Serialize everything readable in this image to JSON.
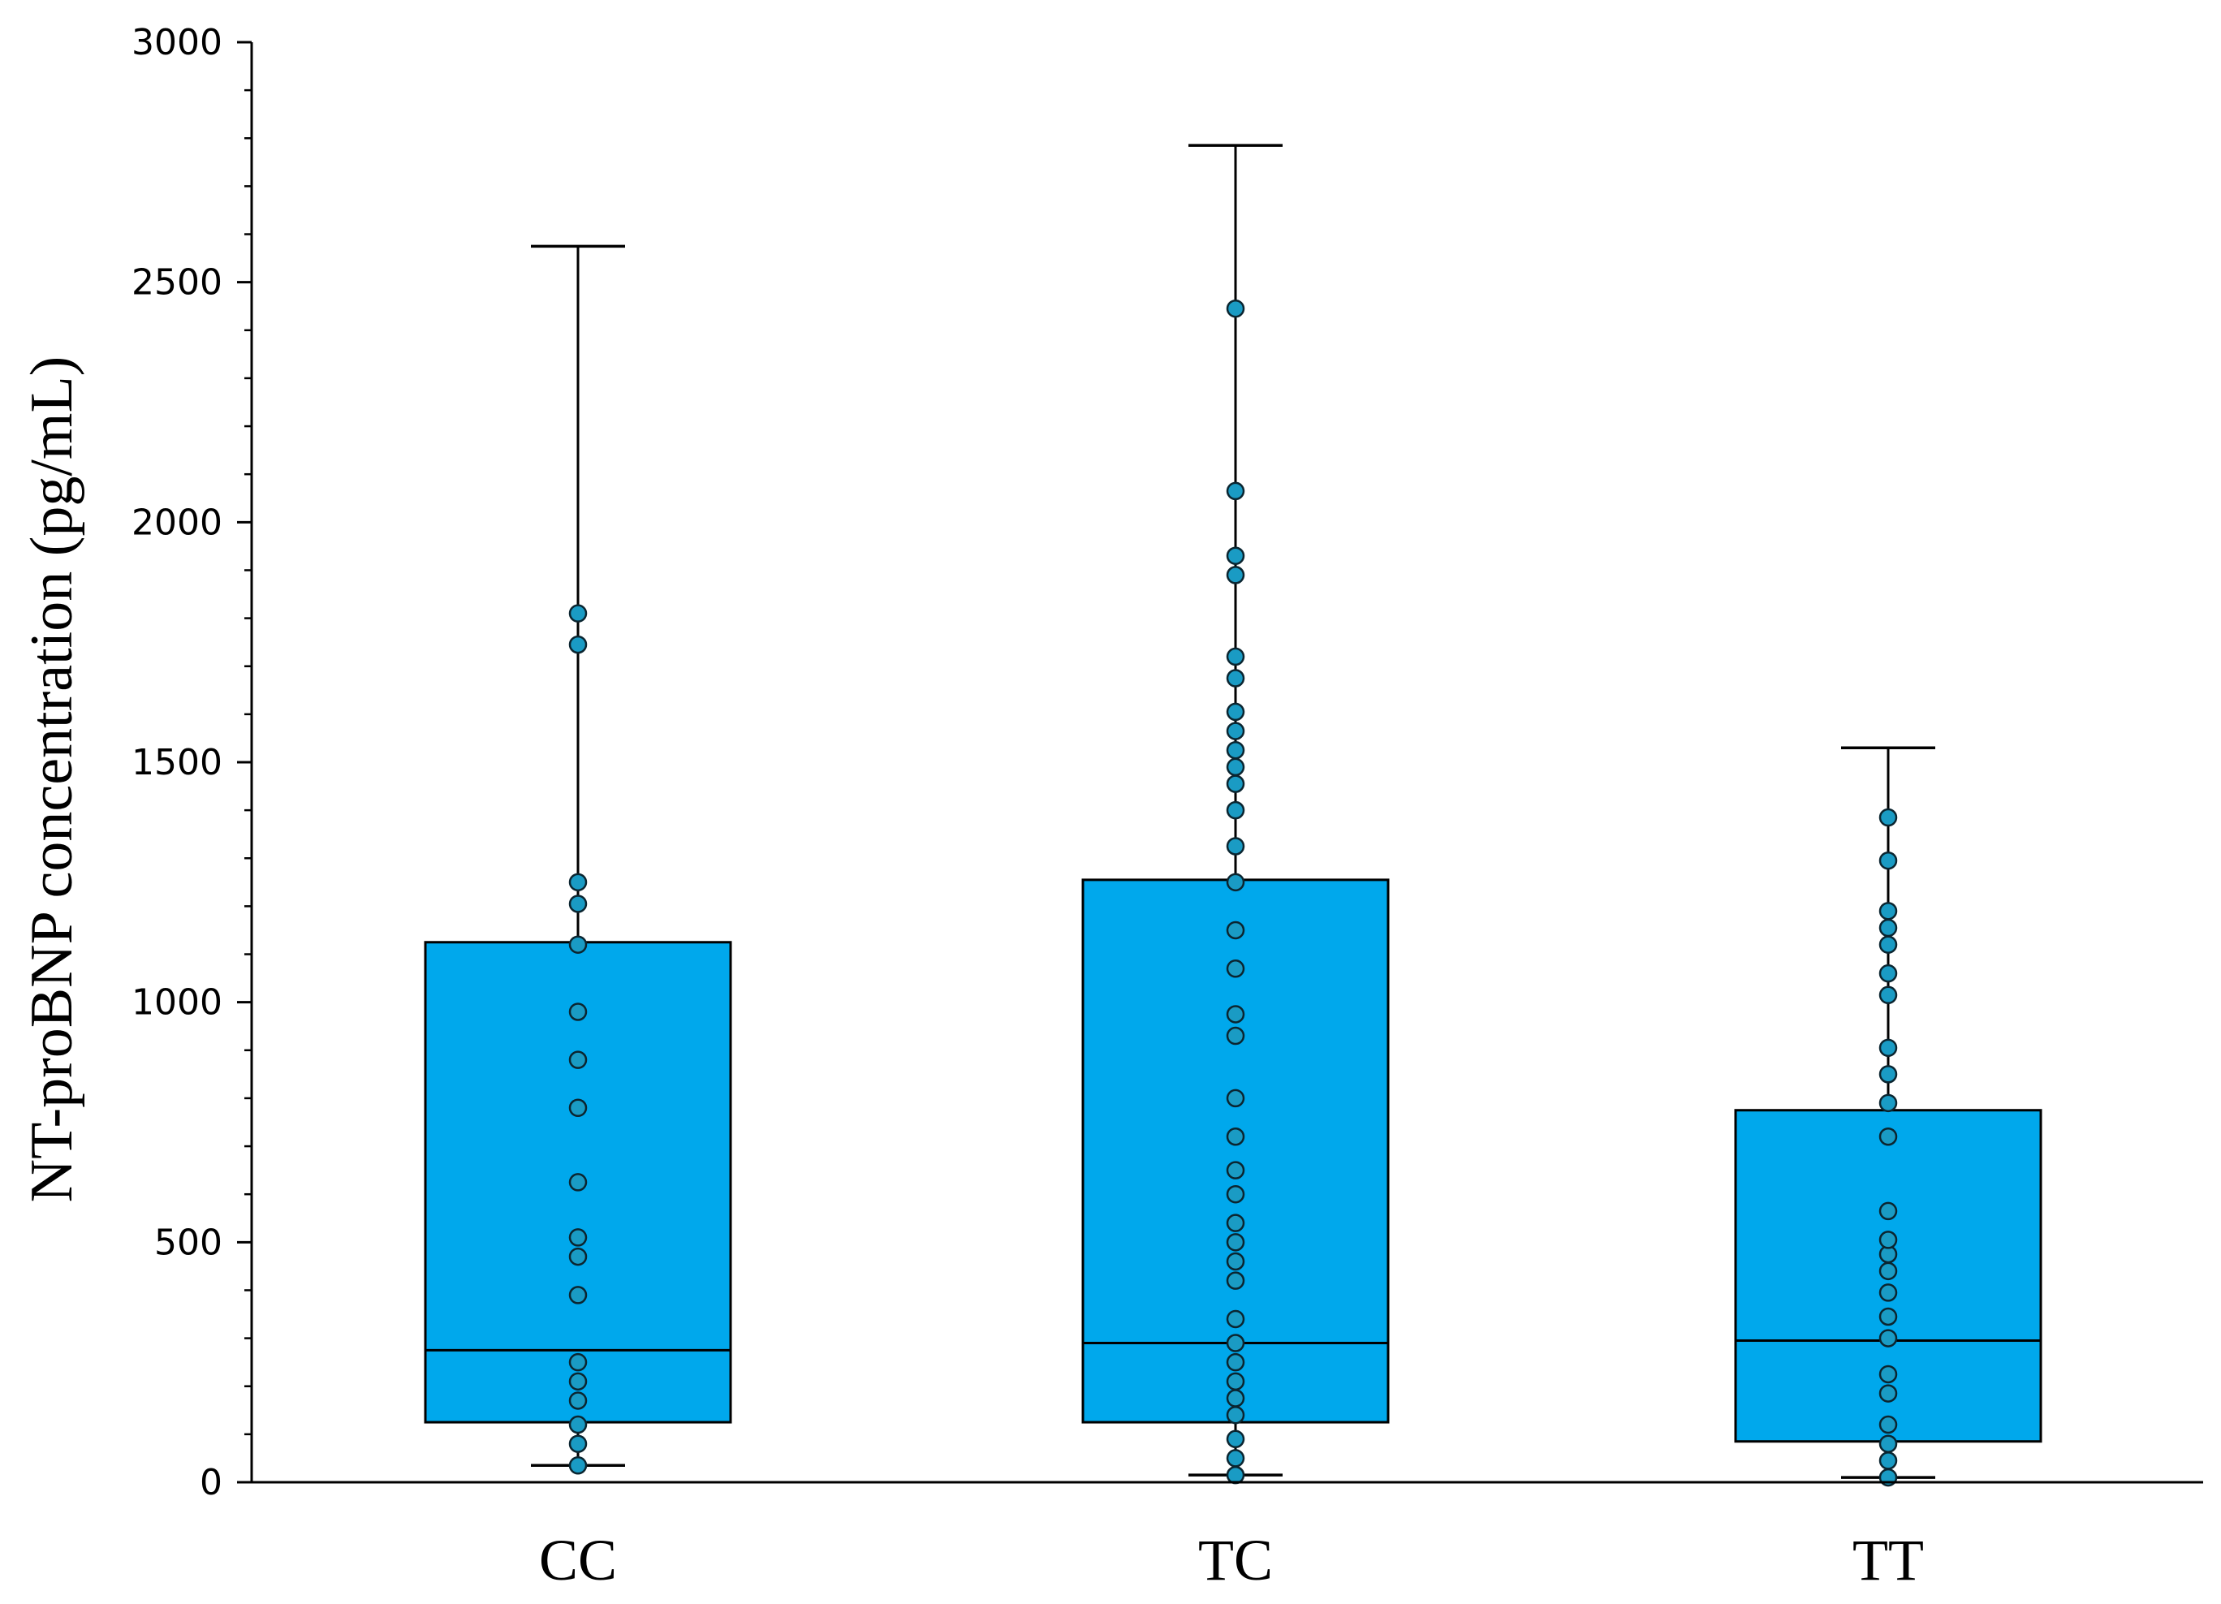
{
  "chart_data": {
    "type": "box",
    "title": "",
    "xlabel": "",
    "ylabel": "NT-proBNP concentration  (pg/mL)",
    "categories": [
      "CC",
      "TC",
      "TT"
    ],
    "ylim": [
      0,
      3000
    ],
    "yticks": [
      0,
      500,
      1000,
      1500,
      2000,
      2500,
      3000
    ],
    "grid": false,
    "box_color": "#00a8ec",
    "point_color": "#1a9bc4",
    "series": [
      {
        "category": "CC",
        "whisker_low": 35,
        "q1": 125,
        "median": 275,
        "q3": 1125,
        "whisker_high": 2575,
        "points": [
          35,
          80,
          120,
          170,
          210,
          250,
          390,
          470,
          510,
          625,
          780,
          880,
          980,
          1120,
          1205,
          1250,
          1745,
          1810
        ]
      },
      {
        "category": "TC",
        "whisker_low": 15,
        "q1": 125,
        "median": 290,
        "q3": 1255,
        "whisker_high": 2785,
        "points": [
          15,
          50,
          90,
          140,
          175,
          210,
          250,
          290,
          340,
          420,
          460,
          500,
          540,
          600,
          650,
          720,
          800,
          930,
          975,
          1070,
          1150,
          1250,
          1325,
          1400,
          1455,
          1490,
          1525,
          1565,
          1605,
          1675,
          1720,
          1890,
          1930,
          2065,
          2445
        ]
      },
      {
        "category": "TT",
        "whisker_low": 10,
        "q1": 85,
        "median": 295,
        "q3": 775,
        "whisker_high": 1530,
        "points": [
          10,
          45,
          80,
          120,
          185,
          225,
          300,
          345,
          395,
          440,
          475,
          505,
          565,
          720,
          790,
          850,
          905,
          1015,
          1060,
          1120,
          1155,
          1190,
          1295,
          1385
        ]
      }
    ]
  }
}
